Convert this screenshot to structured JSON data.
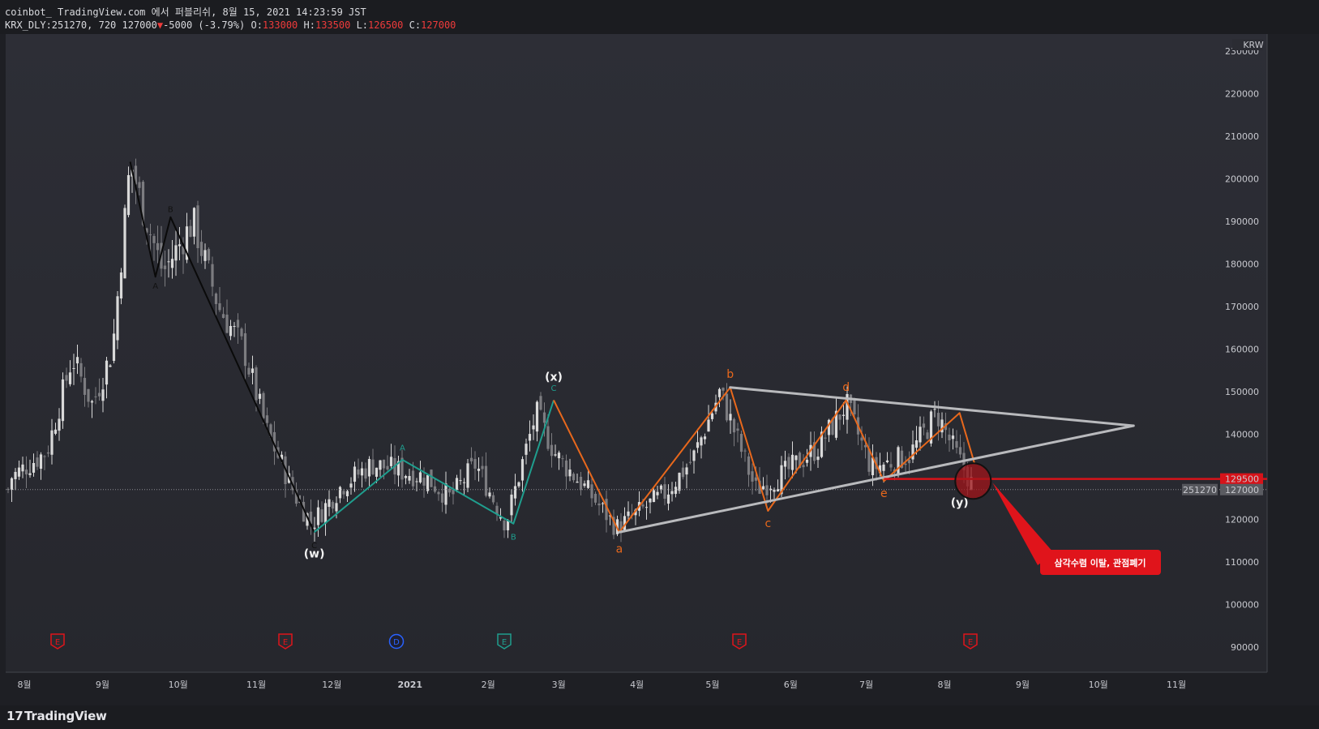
{
  "header": {
    "line1": "coinbot_ TradingView.com 에서 퍼블리쉬, 8월 15, 2021 14:23:59 JST",
    "symbol": "KRX_DLY:251270, 720 127000",
    "change_arrow": "▼",
    "change": "-5000 (-3.79%)",
    "o_label": "O:",
    "o_val": "133000",
    "h_label": "H:",
    "h_val": "133500",
    "l_label": "L:",
    "l_val": "126500",
    "c_label": "C:",
    "c_val": "127000"
  },
  "footer": {
    "brand_logo": "17",
    "brand": "TradingView"
  },
  "colors": {
    "background": "#2b2c33",
    "up": "#d9d9d9",
    "down": "#7c7c80",
    "black_wave": "#0a0a0a",
    "teal_wave": "#1f9e8e",
    "orange_wave": "#e8681c",
    "triangle": "#b9babd",
    "breakout": "#d7131a",
    "label_red": "#e0141b"
  },
  "chart_data": {
    "type": "candlestick",
    "currency": "KRW",
    "last_price": 127000,
    "last_price_label": "127000",
    "symbol_code_label": "251270",
    "breakout_level": 129500,
    "breakout_level_label": "129500",
    "x_ticks": [
      "8월",
      "9월",
      "10월",
      "11월",
      "12월",
      "2021",
      "2월",
      "3월",
      "4월",
      "5월",
      "6월",
      "7월",
      "8월",
      "9월",
      "10월",
      "11월"
    ],
    "y_ticks": [
      90000,
      100000,
      110000,
      120000,
      130000,
      140000,
      150000,
      160000,
      170000,
      180000,
      190000,
      200000,
      210000,
      220000,
      230000
    ],
    "ylim": [
      88000,
      233000
    ],
    "price_path": [
      [
        "2020-07-27",
        130000
      ],
      [
        "2020-08-10",
        136000
      ],
      [
        "2020-08-20",
        158000
      ],
      [
        "2020-08-28",
        147000
      ],
      [
        "2020-09-05",
        160000
      ],
      [
        "2020-09-12",
        204000
      ],
      [
        "2020-09-17",
        193000
      ],
      [
        "2020-09-25",
        178000
      ],
      [
        "2020-10-07",
        190000
      ],
      [
        "2020-10-17",
        170000
      ],
      [
        "2020-10-27",
        160000
      ],
      [
        "2020-11-05",
        141000
      ],
      [
        "2020-11-17",
        125000
      ],
      [
        "2020-11-23",
        119000
      ],
      [
        "2020-12-05",
        128000
      ],
      [
        "2020-12-17",
        133000
      ],
      [
        "2021-01-07",
        130000
      ],
      [
        "2021-01-17",
        125000
      ],
      [
        "2021-01-27",
        133000
      ],
      [
        "2021-02-08",
        119000
      ],
      [
        "2021-02-20",
        145000
      ],
      [
        "2021-02-28",
        135000
      ],
      [
        "2021-03-12",
        127000
      ],
      [
        "2021-03-24",
        118000
      ],
      [
        "2021-04-12",
        126000
      ],
      [
        "2021-04-23",
        134000
      ],
      [
        "2021-05-04",
        150000
      ],
      [
        "2021-05-18",
        127000
      ],
      [
        "2021-05-30",
        131000
      ],
      [
        "2021-06-12",
        137000
      ],
      [
        "2021-06-23",
        147000
      ],
      [
        "2021-07-03",
        132000
      ],
      [
        "2021-07-18",
        135000
      ],
      [
        "2021-07-29",
        145000
      ],
      [
        "2021-08-05",
        136000
      ],
      [
        "2021-08-13",
        127000
      ]
    ],
    "annotations": [
      {
        "group": "black",
        "points": [
          [
            "2020-09-12",
            204000
          ],
          [
            "2020-09-22",
            177000
          ],
          [
            "2020-09-28",
            191000
          ],
          [
            "2020-11-24",
            117000
          ]
        ],
        "labels": [
          [
            "",
            204000,
            ""
          ],
          [
            "2020-09-22",
            175000,
            "A"
          ],
          [
            "2020-09-28",
            193000,
            "B"
          ],
          [
            "2020-11-24",
            114000,
            "C"
          ]
        ]
      },
      {
        "group": "teal",
        "points": [
          [
            "2020-11-24",
            117000
          ],
          [
            "2020-12-29",
            134000
          ],
          [
            "2021-02-11",
            119000
          ],
          [
            "2021-02-27",
            148000
          ]
        ],
        "labels": [
          [
            "2020-12-29",
            137000,
            "A"
          ],
          [
            "2021-02-11",
            116000,
            "B"
          ],
          [
            "2021-02-27",
            151000,
            "C"
          ]
        ]
      },
      {
        "group": "orange",
        "points": [
          [
            "2021-02-27",
            148000
          ],
          [
            "2021-03-25",
            117000
          ],
          [
            "2021-05-08",
            151000
          ],
          [
            "2021-05-23",
            122000
          ],
          [
            "2021-06-23",
            148000
          ],
          [
            "2021-07-08",
            129000
          ],
          [
            "2021-08-07",
            145000
          ],
          [
            "2021-08-13",
            133000
          ]
        ],
        "labels": [
          [
            "2021-03-25",
            113000,
            "a"
          ],
          [
            "2021-05-08",
            154000,
            "b"
          ],
          [
            "2021-05-23",
            119000,
            "c"
          ],
          [
            "2021-06-23",
            151000,
            "d"
          ],
          [
            "2021-07-08",
            126000,
            "e"
          ]
        ]
      },
      {
        "group": "wave",
        "labels": [
          [
            "2020-11-24",
            "(w)"
          ],
          [
            "2021-02-27",
            "(x)"
          ],
          [
            "2021-08-07",
            "(y)"
          ]
        ]
      }
    ],
    "triangle_lines": [
      [
        [
          "2021-03-25",
          117000
        ],
        [
          "2021-10-15",
          142000
        ]
      ],
      [
        [
          "2021-05-08",
          151000
        ],
        [
          "2021-10-15",
          142000
        ]
      ]
    ],
    "event_markers": [
      "E",
      "E",
      "D",
      "E",
      "E",
      "E"
    ],
    "callout": "삼각수렴 이탈, 관점폐기"
  }
}
